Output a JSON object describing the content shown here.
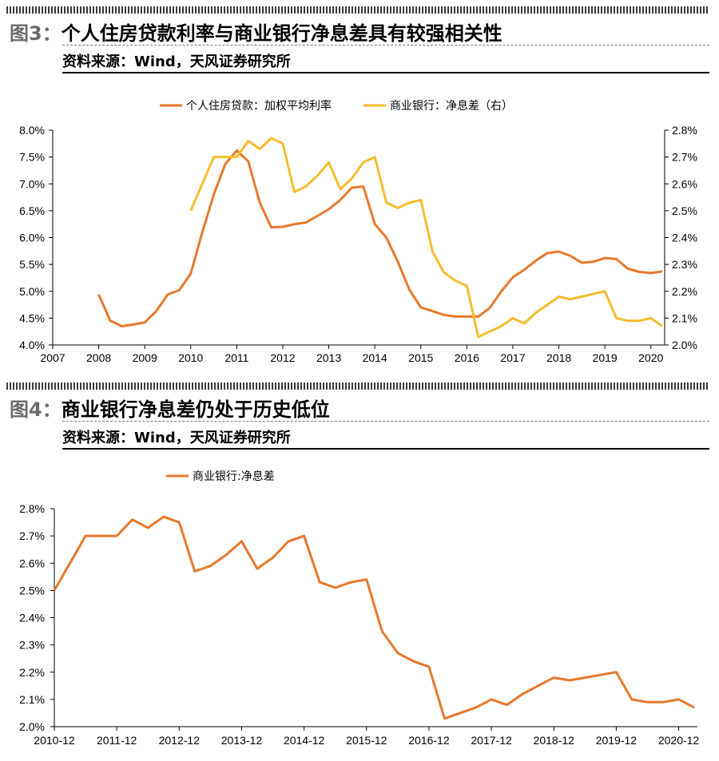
{
  "figure3": {
    "number": "图3：",
    "title": "个人住房贷款利率与商业银行净息差具有较强相关性",
    "source": "资料来源：Wind，天风证券研究所"
  },
  "figure4": {
    "number": "图4：",
    "title": "商业银行净息差仍处于历史低位",
    "source": "资料来源：Wind，天风证券研究所"
  },
  "colors": {
    "orange": "#E8782A",
    "yellow": "#F5BC2E",
    "axis": "#000000"
  },
  "chart_data": [
    {
      "type": "line",
      "legend_position": "top",
      "grid": false,
      "x_ticks": [
        "2007",
        "2008",
        "2009",
        "2010",
        "2011",
        "2012",
        "2013",
        "2014",
        "2015",
        "2016",
        "2017",
        "2018",
        "2019",
        "2020"
      ],
      "xlim": [
        2007,
        2020.3
      ],
      "left_axis": {
        "ylim": [
          4.0,
          8.0
        ],
        "ticks": [
          "4.0%",
          "4.5%",
          "5.0%",
          "5.5%",
          "6.0%",
          "6.5%",
          "7.0%",
          "7.5%",
          "8.0%"
        ]
      },
      "right_axis": {
        "ylim": [
          2.0,
          2.8
        ],
        "ticks": [
          "2.0%",
          "2.1%",
          "2.2%",
          "2.3%",
          "2.4%",
          "2.5%",
          "2.6%",
          "2.7%",
          "2.8%"
        ]
      },
      "series": [
        {
          "name": "个人住房贷款：加权平均利率",
          "axis": "left",
          "color": "#E8782A",
          "x": [
            2008.0,
            2008.25,
            2008.5,
            2008.75,
            2009.0,
            2009.25,
            2009.5,
            2009.75,
            2010.0,
            2010.25,
            2010.5,
            2010.75,
            2011.0,
            2011.25,
            2011.5,
            2011.75,
            2012.0,
            2012.25,
            2012.5,
            2012.75,
            2013.0,
            2013.25,
            2013.5,
            2013.75,
            2014.0,
            2014.25,
            2014.5,
            2014.75,
            2015.0,
            2015.25,
            2015.5,
            2015.75,
            2016.0,
            2016.25,
            2016.5,
            2016.75,
            2017.0,
            2017.25,
            2017.5,
            2017.75,
            2018.0,
            2018.25,
            2018.5,
            2018.75,
            2019.0,
            2019.25,
            2019.5,
            2019.75,
            2020.0,
            2020.25
          ],
          "y": [
            4.94,
            4.45,
            4.35,
            4.38,
            4.42,
            4.63,
            4.94,
            5.02,
            5.33,
            6.1,
            6.8,
            7.37,
            7.62,
            7.42,
            6.65,
            6.19,
            6.2,
            6.25,
            6.28,
            6.4,
            6.53,
            6.7,
            6.93,
            6.95,
            6.25,
            6.0,
            5.55,
            5.03,
            4.7,
            4.63,
            4.56,
            4.53,
            4.53,
            4.53,
            4.69,
            5.0,
            5.26,
            5.4,
            5.57,
            5.71,
            5.74,
            5.66,
            5.53,
            5.55,
            5.62,
            5.6,
            5.42,
            5.36,
            5.34,
            5.37
          ]
        },
        {
          "name": "商业银行：净息差（右）",
          "axis": "right",
          "color": "#F5BC2E",
          "x": [
            2010.0,
            2010.5,
            2010.75,
            2011.0,
            2011.25,
            2011.5,
            2011.75,
            2012.0,
            2012.25,
            2012.5,
            2012.75,
            2013.0,
            2013.25,
            2013.5,
            2013.75,
            2014.0,
            2014.25,
            2014.5,
            2014.75,
            2015.0,
            2015.25,
            2015.5,
            2015.75,
            2016.0,
            2016.25,
            2016.5,
            2016.75,
            2017.0,
            2017.25,
            2017.5,
            2017.75,
            2018.0,
            2018.25,
            2018.5,
            2018.75,
            2019.0,
            2019.25,
            2019.5,
            2019.75,
            2020.0,
            2020.25
          ],
          "y": [
            2.5,
            2.7,
            2.7,
            2.7,
            2.76,
            2.73,
            2.77,
            2.75,
            2.57,
            2.59,
            2.63,
            2.68,
            2.58,
            2.62,
            2.68,
            2.7,
            2.53,
            2.51,
            2.53,
            2.54,
            2.35,
            2.27,
            2.24,
            2.22,
            2.03,
            2.05,
            2.07,
            2.1,
            2.08,
            2.12,
            2.15,
            2.18,
            2.17,
            2.18,
            2.19,
            2.2,
            2.1,
            2.09,
            2.09,
            2.1,
            2.07
          ]
        }
      ]
    },
    {
      "type": "line",
      "legend_position": "top-left",
      "grid": false,
      "x_ticks": [
        "2010-12",
        "2011-12",
        "2012-12",
        "2013-12",
        "2014-12",
        "2015-12",
        "2016-12",
        "2017-12",
        "2018-12",
        "2019-12",
        "2020-12"
      ],
      "xlim": [
        2010.75,
        2021.05
      ],
      "left_axis": {
        "ylim": [
          2.0,
          2.8
        ],
        "ticks": [
          "2.0%",
          "2.1%",
          "2.2%",
          "2.3%",
          "2.4%",
          "2.5%",
          "2.6%",
          "2.7%",
          "2.8%"
        ]
      },
      "series": [
        {
          "name": "商业银行:净息差",
          "axis": "left",
          "color": "#E8782A",
          "x": [
            2010.75,
            2011.25,
            2011.5,
            2011.75,
            2012.0,
            2012.25,
            2012.5,
            2012.75,
            2013.0,
            2013.25,
            2013.5,
            2013.75,
            2014.0,
            2014.25,
            2014.5,
            2014.75,
            2015.0,
            2015.25,
            2015.5,
            2015.75,
            2016.0,
            2016.25,
            2016.5,
            2016.75,
            2017.0,
            2017.25,
            2017.5,
            2017.75,
            2018.0,
            2018.25,
            2018.5,
            2018.75,
            2019.0,
            2019.25,
            2019.5,
            2019.75,
            2020.0,
            2020.25,
            2020.5,
            2020.75,
            2021.0
          ],
          "y": [
            2.5,
            2.7,
            2.7,
            2.7,
            2.76,
            2.73,
            2.77,
            2.75,
            2.57,
            2.59,
            2.63,
            2.68,
            2.58,
            2.62,
            2.68,
            2.7,
            2.53,
            2.51,
            2.53,
            2.54,
            2.35,
            2.27,
            2.24,
            2.22,
            2.03,
            2.05,
            2.07,
            2.1,
            2.08,
            2.12,
            2.15,
            2.18,
            2.17,
            2.18,
            2.19,
            2.2,
            2.1,
            2.09,
            2.09,
            2.1,
            2.07
          ]
        }
      ]
    }
  ]
}
